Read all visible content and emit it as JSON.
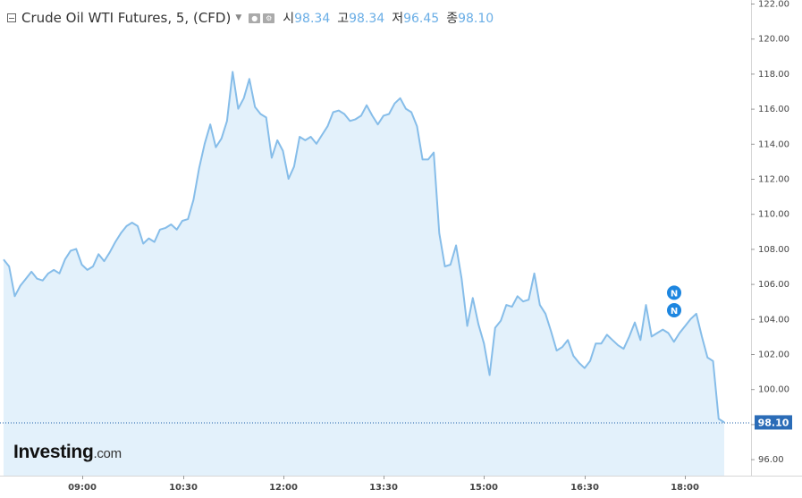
{
  "legend": {
    "title": "Crude Oil WTI Futures, 5, (CFD)",
    "open_label": "시",
    "open": "98.34",
    "high_label": "고",
    "high": "98.34",
    "low_label": "저",
    "low": "96.45",
    "close_label": "종",
    "close": "98.10"
  },
  "logo": {
    "brand": "Investing",
    "suffix": ".com"
  },
  "colors": {
    "line": "#86bde9",
    "fill": "#e3f1fb",
    "accent": "#1d86e0"
  },
  "chart_data": {
    "type": "area",
    "ylim": [
      95,
      122
    ],
    "xlabels": [
      "09:00",
      "10:30",
      "12:00",
      "13:30",
      "15:00",
      "16:30",
      "18:00"
    ],
    "ytick_labels": [
      "96.00",
      "98.00",
      "100.00",
      "102.00",
      "104.00",
      "106.00",
      "108.00",
      "110.00",
      "112.00",
      "114.00",
      "116.00",
      "118.00",
      "120.00",
      "122.00"
    ],
    "last_value": 98.1,
    "last_value_label": "98.10",
    "marker_labels": [
      "N",
      "N"
    ],
    "markers": [
      105.5,
      104.5
    ],
    "values": [
      107.4,
      107.0,
      105.3,
      105.9,
      106.3,
      106.7,
      106.3,
      106.2,
      106.6,
      106.8,
      106.6,
      107.4,
      107.9,
      108.0,
      107.1,
      106.8,
      107.0,
      107.7,
      107.3,
      107.8,
      108.4,
      108.9,
      109.3,
      109.5,
      109.3,
      108.3,
      108.6,
      108.4,
      109.1,
      109.2,
      109.4,
      109.1,
      109.6,
      109.7,
      110.8,
      112.6,
      114.0,
      115.1,
      113.8,
      114.3,
      115.3,
      118.1,
      116.0,
      116.6,
      117.7,
      116.1,
      115.7,
      115.5,
      113.2,
      114.2,
      113.6,
      112.0,
      112.7,
      114.4,
      114.2,
      114.4,
      114.0,
      114.5,
      115.0,
      115.8,
      115.9,
      115.7,
      115.3,
      115.4,
      115.6,
      116.2,
      115.6,
      115.1,
      115.6,
      115.7,
      116.3,
      116.6,
      116.0,
      115.8,
      115.0,
      113.1,
      113.1,
      113.5,
      108.9,
      107.0,
      107.1,
      108.2,
      106.3,
      103.6,
      105.2,
      103.7,
      102.6,
      100.8,
      103.5,
      103.9,
      104.8,
      104.7,
      105.3,
      105.0,
      105.1,
      106.6,
      104.8,
      104.3,
      103.3,
      102.2,
      102.4,
      102.8,
      101.9,
      101.5,
      101.2,
      101.6,
      102.6,
      102.6,
      103.1,
      102.8,
      102.5,
      102.3,
      103.0,
      103.8,
      102.8,
      104.8,
      103.0,
      103.2,
      103.4,
      103.2,
      102.7,
      103.2,
      103.6,
      104.0,
      104.3,
      103.0,
      101.8,
      101.6,
      98.3,
      98.1
    ]
  }
}
